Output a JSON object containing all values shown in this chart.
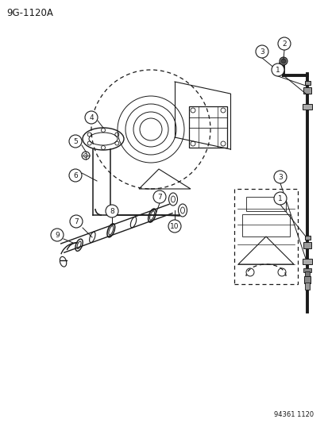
{
  "title": "9G-1120A",
  "footer": "94361 1120",
  "bg": "#ffffff",
  "lc": "#1a1a1a",
  "fig_width": 4.14,
  "fig_height": 5.33,
  "dpi": 100
}
